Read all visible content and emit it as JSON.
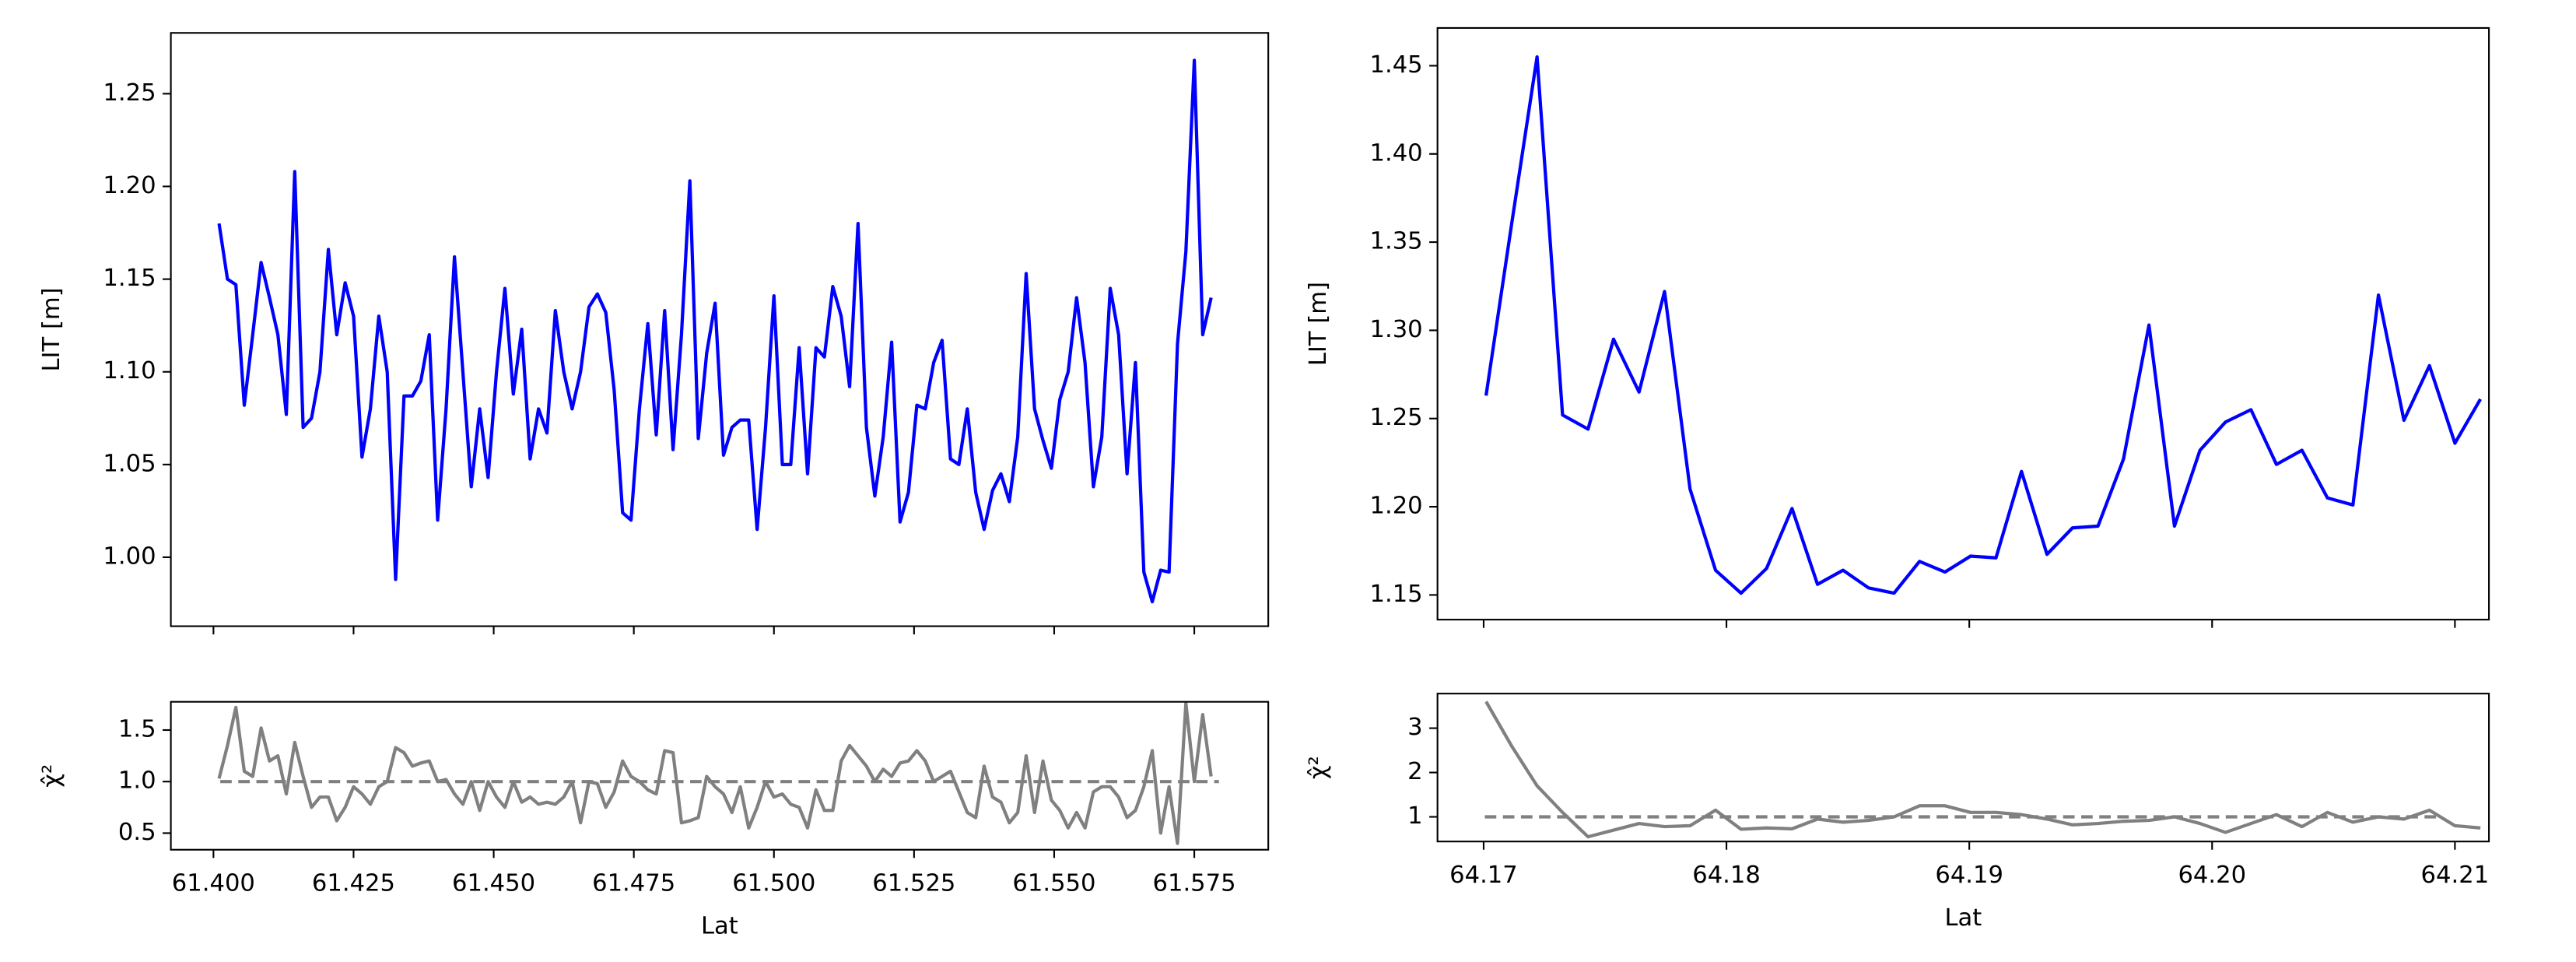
{
  "chart_data": [
    {
      "type": "line",
      "color": "#0000ff",
      "ylabel": "LIT [m]",
      "xlim": [
        61.3924,
        61.5882
      ],
      "ylim": [
        0.9628,
        1.2828
      ],
      "xticks": [
        61.4,
        61.425,
        61.45,
        61.475,
        61.5,
        61.525,
        61.55,
        61.575
      ],
      "xtick_labels": false,
      "yticks": [
        {
          "value": 1.0,
          "label": "1.00"
        },
        1.05,
        {
          "value": 1.1,
          "label": "1.10"
        },
        1.15,
        {
          "value": 1.2,
          "label": "1.20"
        },
        1.25
      ],
      "x": [
        61.401,
        61.4025,
        61.404,
        61.4055,
        61.407,
        61.4085,
        61.41,
        61.4115,
        61.413,
        61.4145,
        61.416,
        61.4175,
        61.419,
        61.4205,
        61.422,
        61.4235,
        61.425,
        61.4265,
        61.428,
        61.4295,
        61.431,
        61.4325,
        61.434,
        61.4355,
        61.437,
        61.4385,
        61.44,
        61.4415,
        61.443,
        61.4445,
        61.446,
        61.4475,
        61.449,
        61.4505,
        61.452,
        61.4535,
        61.455,
        61.4565,
        61.458,
        61.4595,
        61.461,
        61.4625,
        61.464,
        61.4655,
        61.467,
        61.4685,
        61.47,
        61.4715,
        61.473,
        61.4745,
        61.476,
        61.4775,
        61.479,
        61.4805,
        61.482,
        61.4835,
        61.485,
        61.4865,
        61.488,
        61.4895,
        61.491,
        61.4925,
        61.494,
        61.4955,
        61.497,
        61.4985,
        61.5,
        61.5015,
        61.503,
        61.5045,
        61.506,
        61.5075,
        61.509,
        61.5105,
        61.512,
        61.5135,
        61.515,
        61.5165,
        61.518,
        61.5195,
        61.521,
        61.5225,
        61.524,
        61.5255,
        61.527,
        61.5285,
        61.53,
        61.5315,
        61.533,
        61.5345,
        61.536,
        61.5375,
        61.539,
        61.5405,
        61.542,
        61.5435,
        61.545,
        61.5465,
        61.548,
        61.5495,
        61.551,
        61.5525,
        61.554,
        61.5555,
        61.557,
        61.5585,
        61.56,
        61.5615,
        61.563,
        61.5645,
        61.566,
        61.5675,
        61.569,
        61.5705,
        61.572,
        61.5735,
        61.575,
        61.5765,
        61.578
      ],
      "values": [
        1.18,
        1.15,
        1.147,
        1.082,
        1.12,
        1.159,
        1.14,
        1.12,
        1.077,
        1.208,
        1.07,
        1.075,
        1.1,
        1.166,
        1.12,
        1.148,
        1.13,
        1.054,
        1.08,
        1.13,
        1.1,
        0.988,
        1.087,
        1.087,
        1.095,
        1.12,
        1.02,
        1.08,
        1.162,
        1.1,
        1.038,
        1.08,
        1.043,
        1.1,
        1.145,
        1.088,
        1.123,
        1.053,
        1.08,
        1.067,
        1.133,
        1.1,
        1.08,
        1.1,
        1.135,
        1.142,
        1.132,
        1.09,
        1.024,
        1.02,
        1.08,
        1.126,
        1.066,
        1.133,
        1.058,
        1.12,
        1.203,
        1.064,
        1.11,
        1.137,
        1.055,
        1.07,
        1.074,
        1.074,
        1.015,
        1.07,
        1.141,
        1.05,
        1.05,
        1.113,
        1.045,
        1.113,
        1.108,
        1.146,
        1.13,
        1.092,
        1.18,
        1.07,
        1.033,
        1.065,
        1.116,
        1.019,
        1.035,
        1.082,
        1.08,
        1.105,
        1.117,
        1.053,
        1.05,
        1.08,
        1.035,
        1.015,
        1.036,
        1.045,
        1.03,
        1.065,
        1.153,
        1.08,
        1.063,
        1.048,
        1.085,
        1.1,
        1.14,
        1.105,
        1.038,
        1.065,
        1.145,
        1.12,
        1.045,
        1.105,
        0.992,
        0.976,
        0.993,
        0.992,
        1.115,
        1.165,
        1.268,
        1.12,
        1.14
      ]
    },
    {
      "type": "line",
      "color": "#808080",
      "ylabel": "χ̂²",
      "xlabel": "Lat",
      "hline": 1,
      "xlim": [
        61.3924,
        61.5882
      ],
      "ylim": [
        0.339,
        1.774
      ],
      "xticks": [
        {
          "value": 61.4,
          "label": "61.400"
        },
        61.425,
        {
          "value": 61.45,
          "label": "61.450"
        },
        61.475,
        {
          "value": 61.5,
          "label": "61.500"
        },
        61.525,
        {
          "value": 61.55,
          "label": "61.550"
        },
        61.575
      ],
      "yticks": [
        0.5,
        {
          "value": 1,
          "label": "1.0"
        },
        1.5
      ],
      "x": [
        61.401,
        61.4025,
        61.404,
        61.4055,
        61.407,
        61.4085,
        61.41,
        61.4115,
        61.413,
        61.4145,
        61.416,
        61.4175,
        61.419,
        61.4205,
        61.422,
        61.4235,
        61.425,
        61.4265,
        61.428,
        61.4295,
        61.431,
        61.4325,
        61.434,
        61.4355,
        61.437,
        61.4385,
        61.44,
        61.4415,
        61.443,
        61.4445,
        61.446,
        61.4475,
        61.449,
        61.4505,
        61.452,
        61.4535,
        61.455,
        61.4565,
        61.458,
        61.4595,
        61.461,
        61.4625,
        61.464,
        61.4655,
        61.467,
        61.4685,
        61.47,
        61.4715,
        61.473,
        61.4745,
        61.476,
        61.4775,
        61.479,
        61.4805,
        61.482,
        61.4835,
        61.485,
        61.4865,
        61.488,
        61.4895,
        61.491,
        61.4925,
        61.494,
        61.4955,
        61.497,
        61.4985,
        61.5,
        61.5015,
        61.503,
        61.5045,
        61.506,
        61.5075,
        61.509,
        61.5105,
        61.512,
        61.5135,
        61.515,
        61.5165,
        61.518,
        61.5195,
        61.521,
        61.5225,
        61.524,
        61.5255,
        61.527,
        61.5285,
        61.53,
        61.5315,
        61.533,
        61.5345,
        61.536,
        61.5375,
        61.539,
        61.5405,
        61.542,
        61.5435,
        61.545,
        61.5465,
        61.548,
        61.5495,
        61.551,
        61.5525,
        61.554,
        61.5555,
        61.557,
        61.5585,
        61.56,
        61.5615,
        61.563,
        61.5645,
        61.566,
        61.5675,
        61.569,
        61.5705,
        61.572,
        61.5735,
        61.575,
        61.5765,
        61.578
      ],
      "values": [
        1.03,
        1.35,
        1.72,
        1.1,
        1.05,
        1.52,
        1.2,
        1.25,
        0.88,
        1.38,
        1.05,
        0.75,
        0.85,
        0.85,
        0.62,
        0.75,
        0.95,
        0.88,
        0.78,
        0.95,
        1.0,
        1.33,
        1.28,
        1.15,
        1.18,
        1.2,
        1.0,
        1.02,
        0.88,
        0.78,
        1.0,
        0.72,
        1.0,
        0.85,
        0.75,
        1.0,
        0.8,
        0.85,
        0.78,
        0.8,
        0.78,
        0.85,
        1.0,
        0.6,
        1.0,
        0.98,
        0.75,
        0.9,
        1.2,
        1.05,
        1.0,
        0.92,
        0.88,
        1.3,
        1.28,
        0.6,
        0.62,
        0.65,
        1.05,
        0.95,
        0.88,
        0.7,
        0.95,
        0.55,
        0.75,
        1.0,
        0.85,
        0.88,
        0.78,
        0.75,
        0.55,
        0.92,
        0.72,
        0.72,
        1.2,
        1.35,
        1.25,
        1.15,
        1.0,
        1.12,
        1.05,
        1.18,
        1.2,
        1.3,
        1.2,
        1.0,
        1.05,
        1.1,
        0.9,
        0.7,
        0.65,
        1.15,
        0.85,
        0.8,
        0.6,
        0.7,
        1.25,
        0.7,
        1.2,
        0.82,
        0.72,
        0.55,
        0.7,
        0.55,
        0.9,
        0.95,
        0.95,
        0.85,
        0.65,
        0.72,
        0.95,
        1.3,
        0.5,
        0.95,
        0.4,
        1.76,
        1.0,
        1.65,
        1.05
      ]
    },
    {
      "type": "line",
      "color": "#0000ff",
      "ylabel": "LIT [m]",
      "xlim": [
        64.1681,
        64.2114
      ],
      "ylim": [
        1.136,
        1.4714
      ],
      "xticks": [
        64.17,
        64.18,
        64.19,
        64.2,
        64.21
      ],
      "xtick_labels": false,
      "yticks": [
        1.15,
        {
          "value": 1.2,
          "label": "1.20"
        },
        1.25,
        {
          "value": 1.3,
          "label": "1.30"
        },
        1.35,
        {
          "value": 1.4,
          "label": "1.40"
        },
        1.45
      ],
      "x": [
        64.1701,
        64.17115,
        64.1722,
        64.17325,
        64.1743,
        64.17535,
        64.1764,
        64.17745,
        64.1785,
        64.17955,
        64.1806,
        64.18165,
        64.1827,
        64.18375,
        64.1848,
        64.18585,
        64.1869,
        64.18795,
        64.189,
        64.19005,
        64.1911,
        64.19215,
        64.1932,
        64.19425,
        64.1953,
        64.19635,
        64.1974,
        64.19845,
        64.1995,
        64.20055,
        64.2016,
        64.20265,
        64.2037,
        64.20475,
        64.2058,
        64.20685,
        64.2079,
        64.20895,
        64.21,
        64.21105
      ],
      "values": [
        1.263,
        1.36,
        1.455,
        1.252,
        1.244,
        1.295,
        1.265,
        1.322,
        1.21,
        1.164,
        1.151,
        1.165,
        1.199,
        1.156,
        1.164,
        1.154,
        1.151,
        1.169,
        1.163,
        1.172,
        1.171,
        1.22,
        1.173,
        1.188,
        1.189,
        1.227,
        1.303,
        1.189,
        1.232,
        1.248,
        1.255,
        1.224,
        1.232,
        1.205,
        1.201,
        1.32,
        1.249,
        1.28,
        1.236,
        1.261
      ]
    },
    {
      "type": "line",
      "color": "#808080",
      "ylabel": "χ̂²",
      "xlabel": "Lat",
      "hline": 1,
      "xlim": [
        64.1681,
        64.2114
      ],
      "ylim": [
        0.444,
        3.78
      ],
      "xticks": [
        64.17,
        64.18,
        64.19,
        {
          "value": 64.2,
          "label": "64.20"
        },
        64.21
      ],
      "yticks": [
        1,
        2,
        3
      ],
      "x": [
        64.1701,
        64.17115,
        64.1722,
        64.17325,
        64.1743,
        64.17535,
        64.1764,
        64.17745,
        64.1785,
        64.17955,
        64.1806,
        64.18165,
        64.1827,
        64.18375,
        64.1848,
        64.18585,
        64.1869,
        64.18795,
        64.189,
        64.19005,
        64.1911,
        64.19215,
        64.1932,
        64.19425,
        64.1953,
        64.19635,
        64.1974,
        64.19845,
        64.1995,
        64.20055,
        64.2016,
        64.20265,
        64.2037,
        64.20475,
        64.2058,
        64.20685,
        64.2079,
        64.20895,
        64.21,
        64.21105
      ],
      "values": [
        3.6,
        2.6,
        1.7,
        1.1,
        0.55,
        0.7,
        0.85,
        0.78,
        0.8,
        1.15,
        0.72,
        0.75,
        0.73,
        0.95,
        0.88,
        0.92,
        1.0,
        1.25,
        1.25,
        1.1,
        1.1,
        1.05,
        0.95,
        0.82,
        0.85,
        0.9,
        0.92,
        1.0,
        0.85,
        0.65,
        0.85,
        1.05,
        0.78,
        1.1,
        0.88,
        1.0,
        0.95,
        1.15,
        0.8,
        0.75
      ]
    }
  ]
}
